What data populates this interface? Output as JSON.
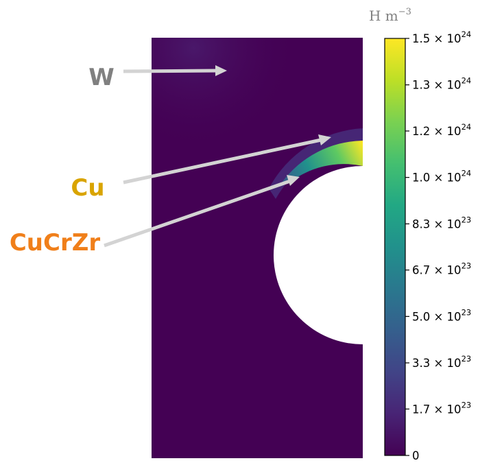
{
  "colorbar": {
    "unit_base": "H m",
    "unit_exponent": "−3",
    "ticks": [
      {
        "mantissa": "1.5 × 10",
        "exponent": "24",
        "value": 1.5e+24
      },
      {
        "mantissa": "1.3 × 10",
        "exponent": "24",
        "value": 1.333e+24
      },
      {
        "mantissa": "1.2 × 10",
        "exponent": "24",
        "value": 1.167e+24
      },
      {
        "mantissa": "1.0 × 10",
        "exponent": "24",
        "value": 1e+24
      },
      {
        "mantissa": "8.3 × 10",
        "exponent": "23",
        "value": 8.33e+23
      },
      {
        "mantissa": "6.7 × 10",
        "exponent": "23",
        "value": 6.67e+23
      },
      {
        "mantissa": "5.0 × 10",
        "exponent": "23",
        "value": 5e+23
      },
      {
        "mantissa": "3.3 × 10",
        "exponent": "23",
        "value": 3.33e+23
      },
      {
        "mantissa": "1.7 × 10",
        "exponent": "23",
        "value": 1.67e+23
      },
      {
        "mantissa": "0",
        "exponent": "",
        "value": 0
      }
    ],
    "range": [
      0,
      1.5e+24
    ],
    "colormap": "viridis"
  },
  "materials": {
    "w": {
      "label": "W",
      "color": "#808080"
    },
    "cu": {
      "label": "Cu",
      "color": "#D9A400"
    },
    "cucrzr": {
      "label": "CuCrZr",
      "color": "#F07F1A"
    }
  },
  "colors": {
    "background_field": "#440154",
    "arrow": "#D3D3D3",
    "pipe": "#ffffff"
  }
}
